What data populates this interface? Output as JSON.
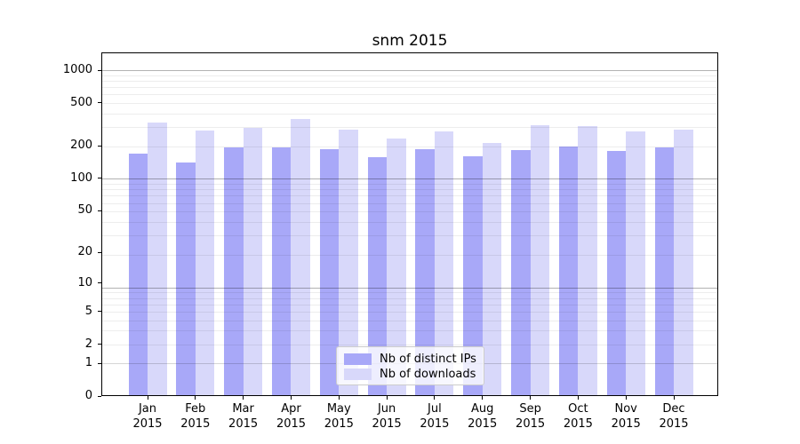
{
  "chart_data": {
    "type": "bar",
    "title": "snm 2015",
    "categories": [
      "Jan 2015",
      "Feb 2015",
      "Mar 2015",
      "Apr 2015",
      "May 2015",
      "Jun 2015",
      "Jul 2015",
      "Aug 2015",
      "Sep 2015",
      "Oct 2015",
      "Nov 2015",
      "Dec 2015"
    ],
    "series": [
      {
        "name": "Nb of distinct IPs",
        "color": "#a8a8f8",
        "values": [
          170,
          140,
          195,
          194,
          185,
          158,
          186,
          160,
          182,
          196,
          180,
          195
        ]
      },
      {
        "name": "Nb of downloads",
        "color": "#d8d8fa",
        "values": [
          330,
          280,
          294,
          355,
          283,
          234,
          272,
          212,
          312,
          307,
          273,
          285
        ]
      }
    ],
    "xlabel": "",
    "ylabel": "",
    "yscale": "log1p",
    "yticks": [
      0,
      1,
      2,
      5,
      10,
      20,
      50,
      100,
      200,
      500,
      1000
    ],
    "ylim": [
      0,
      1450
    ],
    "grid": "both-minor-and-major-horizontal",
    "legend_position": "lower center",
    "bar_group_width": 0.8
  },
  "colors": {
    "background": "#ffffff",
    "spine": "#000000",
    "series_ips": "#a8a8f8",
    "series_downloads": "#d8d8fa",
    "legend_border": "#cccccc"
  }
}
